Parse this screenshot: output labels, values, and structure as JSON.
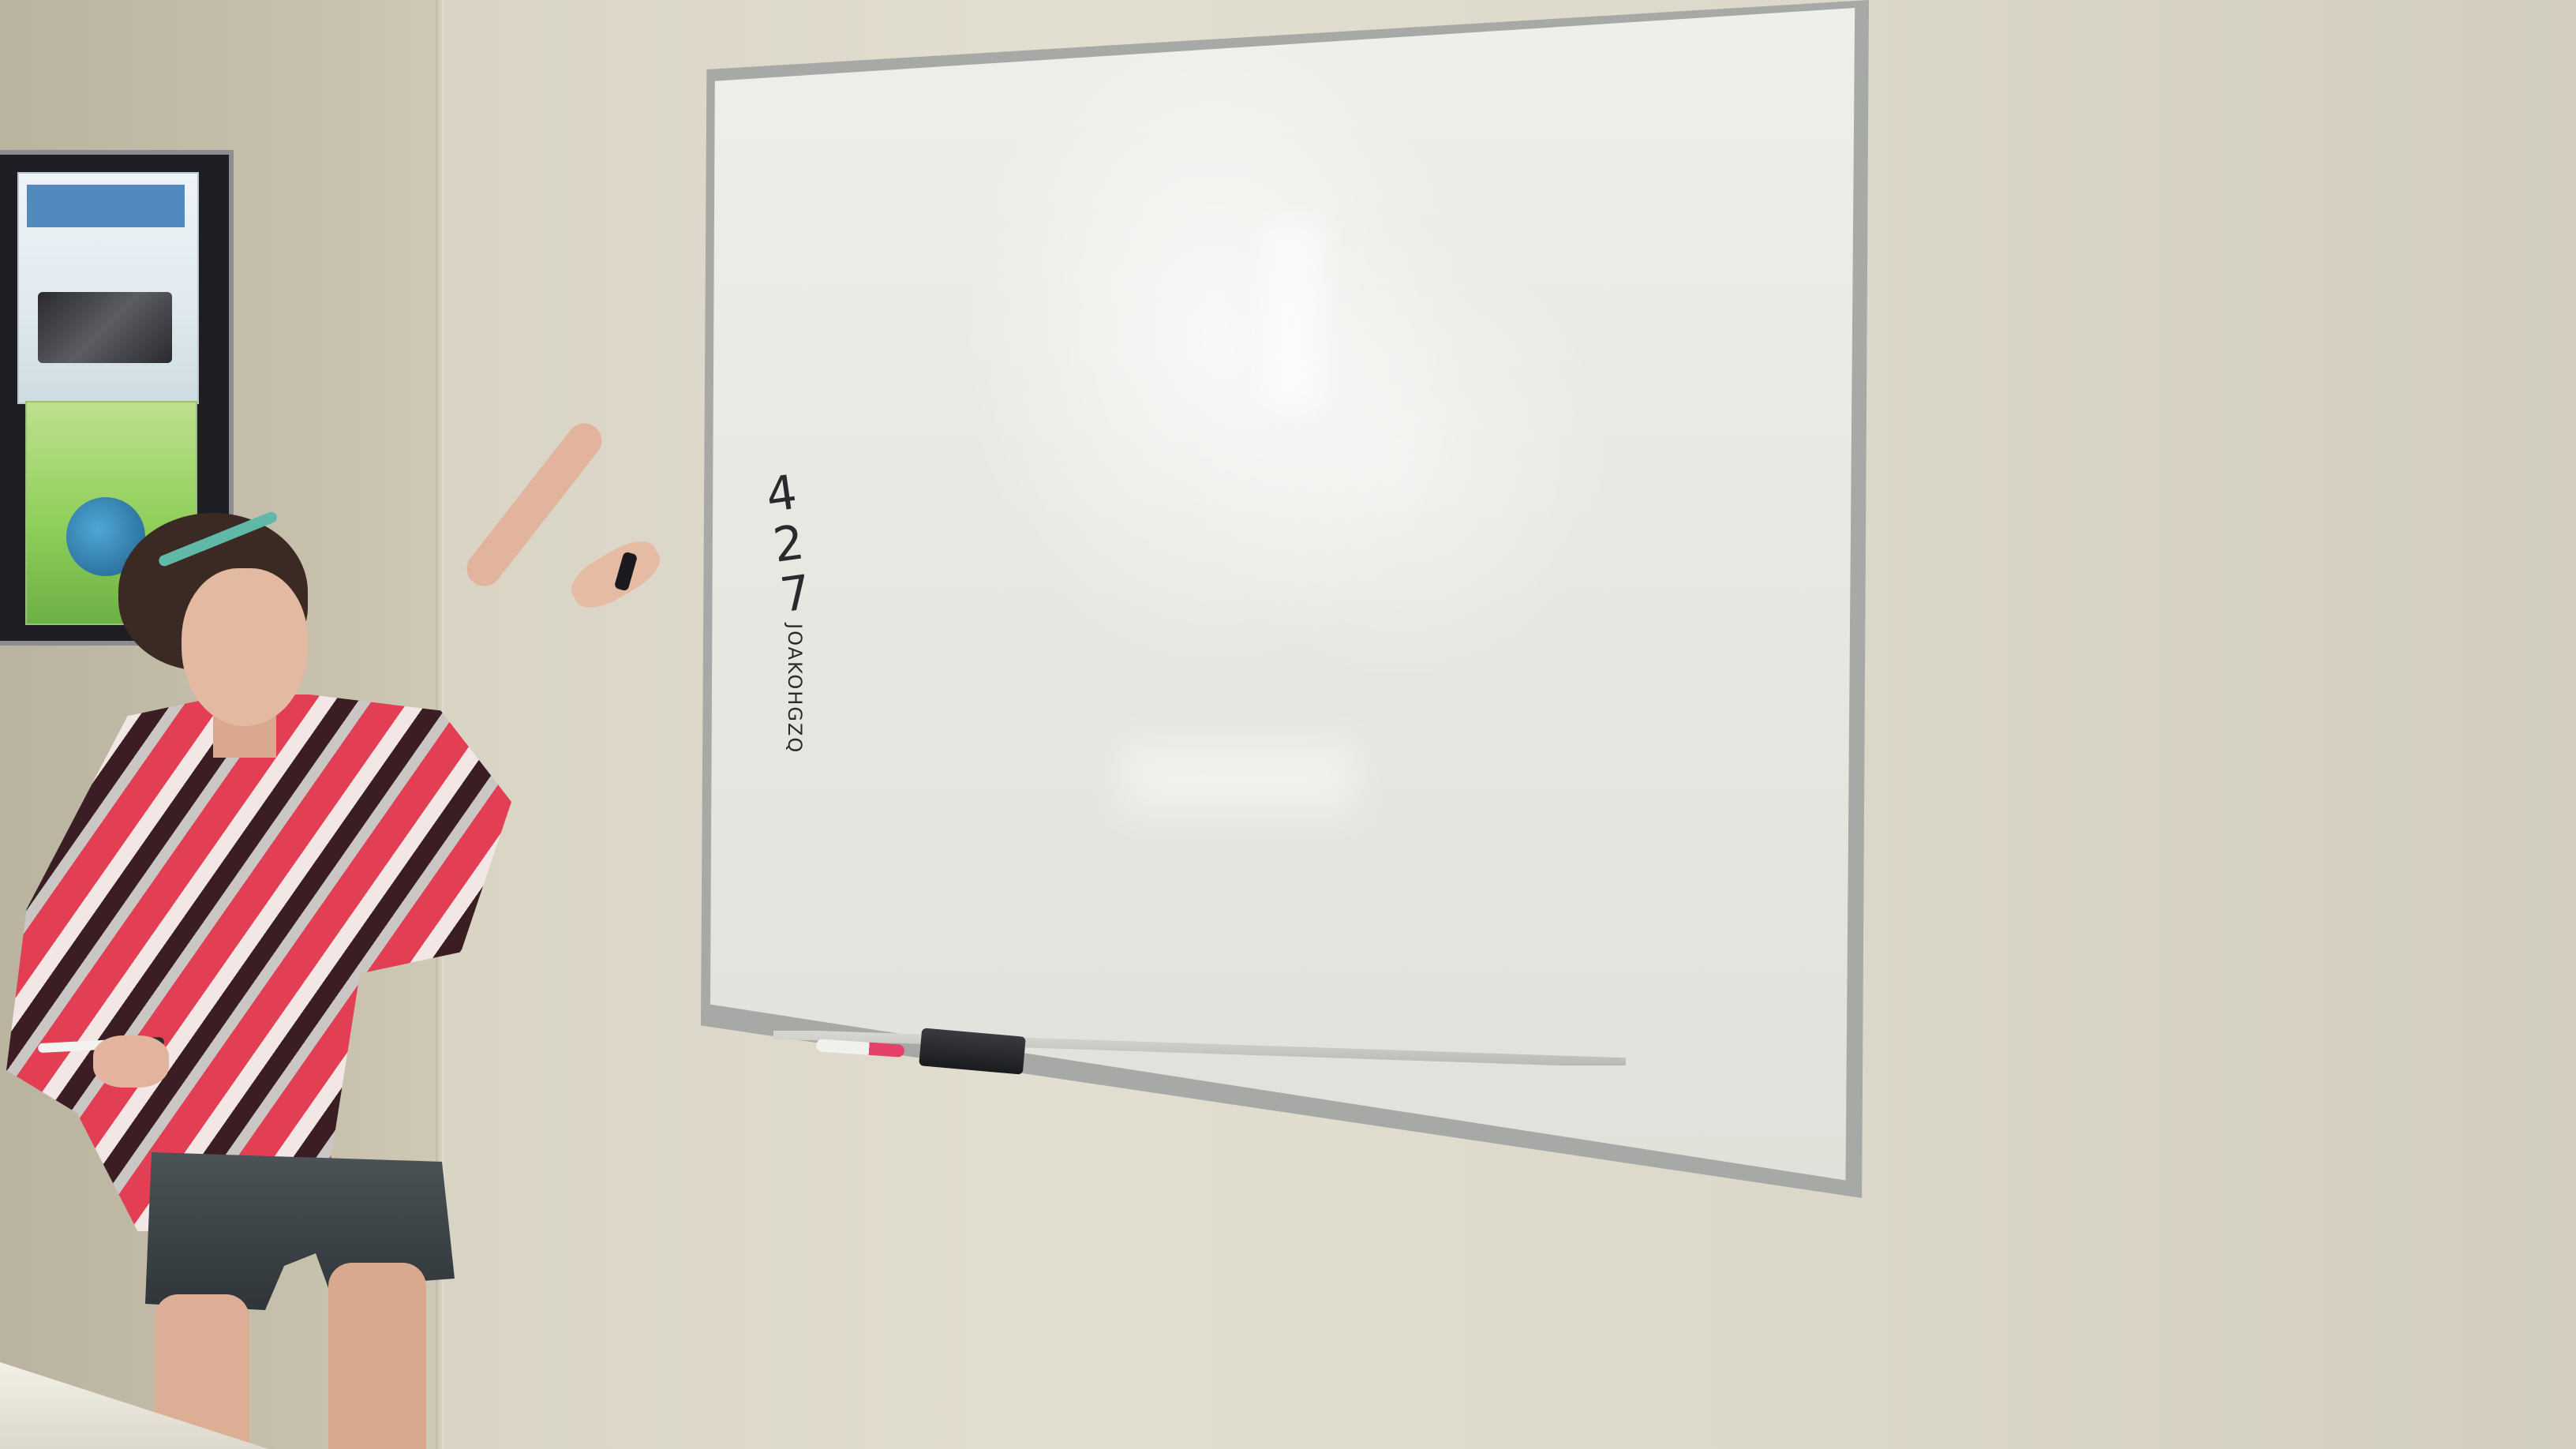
{
  "scene": {
    "description_label": "",
    "colors": {
      "wall": "#dcd8ca",
      "whiteboard_surface": "#e6e8e2",
      "whiteboard_frame": "#a7a9a6",
      "shirt_red": "#e23e54",
      "shirt_dark": "#3a1e24",
      "headband": "#5fb9a6",
      "marker_cap": "#e4426b"
    }
  },
  "whiteboard": {
    "writing_large": "4 2 7",
    "writing_small": "JOAKOHGZQ"
  }
}
